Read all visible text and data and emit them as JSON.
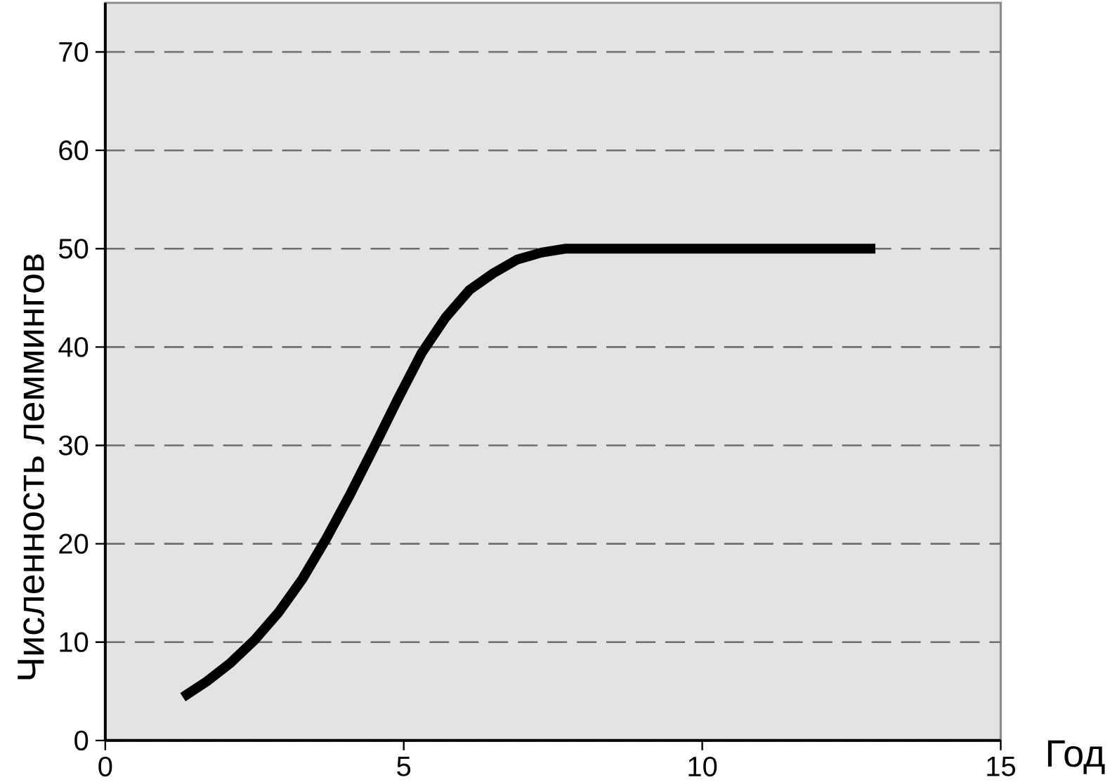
{
  "chart_data": {
    "type": "line",
    "xlabel": "Год",
    "ylabel": "Численность леммингов",
    "x": [
      1.3,
      1.7,
      2.1,
      2.5,
      2.9,
      3.3,
      3.7,
      4.1,
      4.5,
      4.9,
      5.3,
      5.7,
      6.1,
      6.5,
      6.9,
      7.3,
      7.7,
      8.5,
      10,
      12.9
    ],
    "values": [
      4.4,
      6,
      7.9,
      10.2,
      13,
      16.4,
      20.5,
      25,
      29.8,
      34.7,
      39.4,
      43,
      45.8,
      47.5,
      48.9,
      49.6,
      50,
      50,
      50,
      50
    ],
    "color": "#000000",
    "line_style": "solid",
    "xlim": [
      0,
      15
    ],
    "ylim": [
      0,
      75
    ],
    "xticks": [
      0,
      5,
      10,
      15
    ],
    "yticks": [
      0,
      10,
      20,
      30,
      40,
      50,
      60,
      70
    ],
    "grid": "y"
  }
}
